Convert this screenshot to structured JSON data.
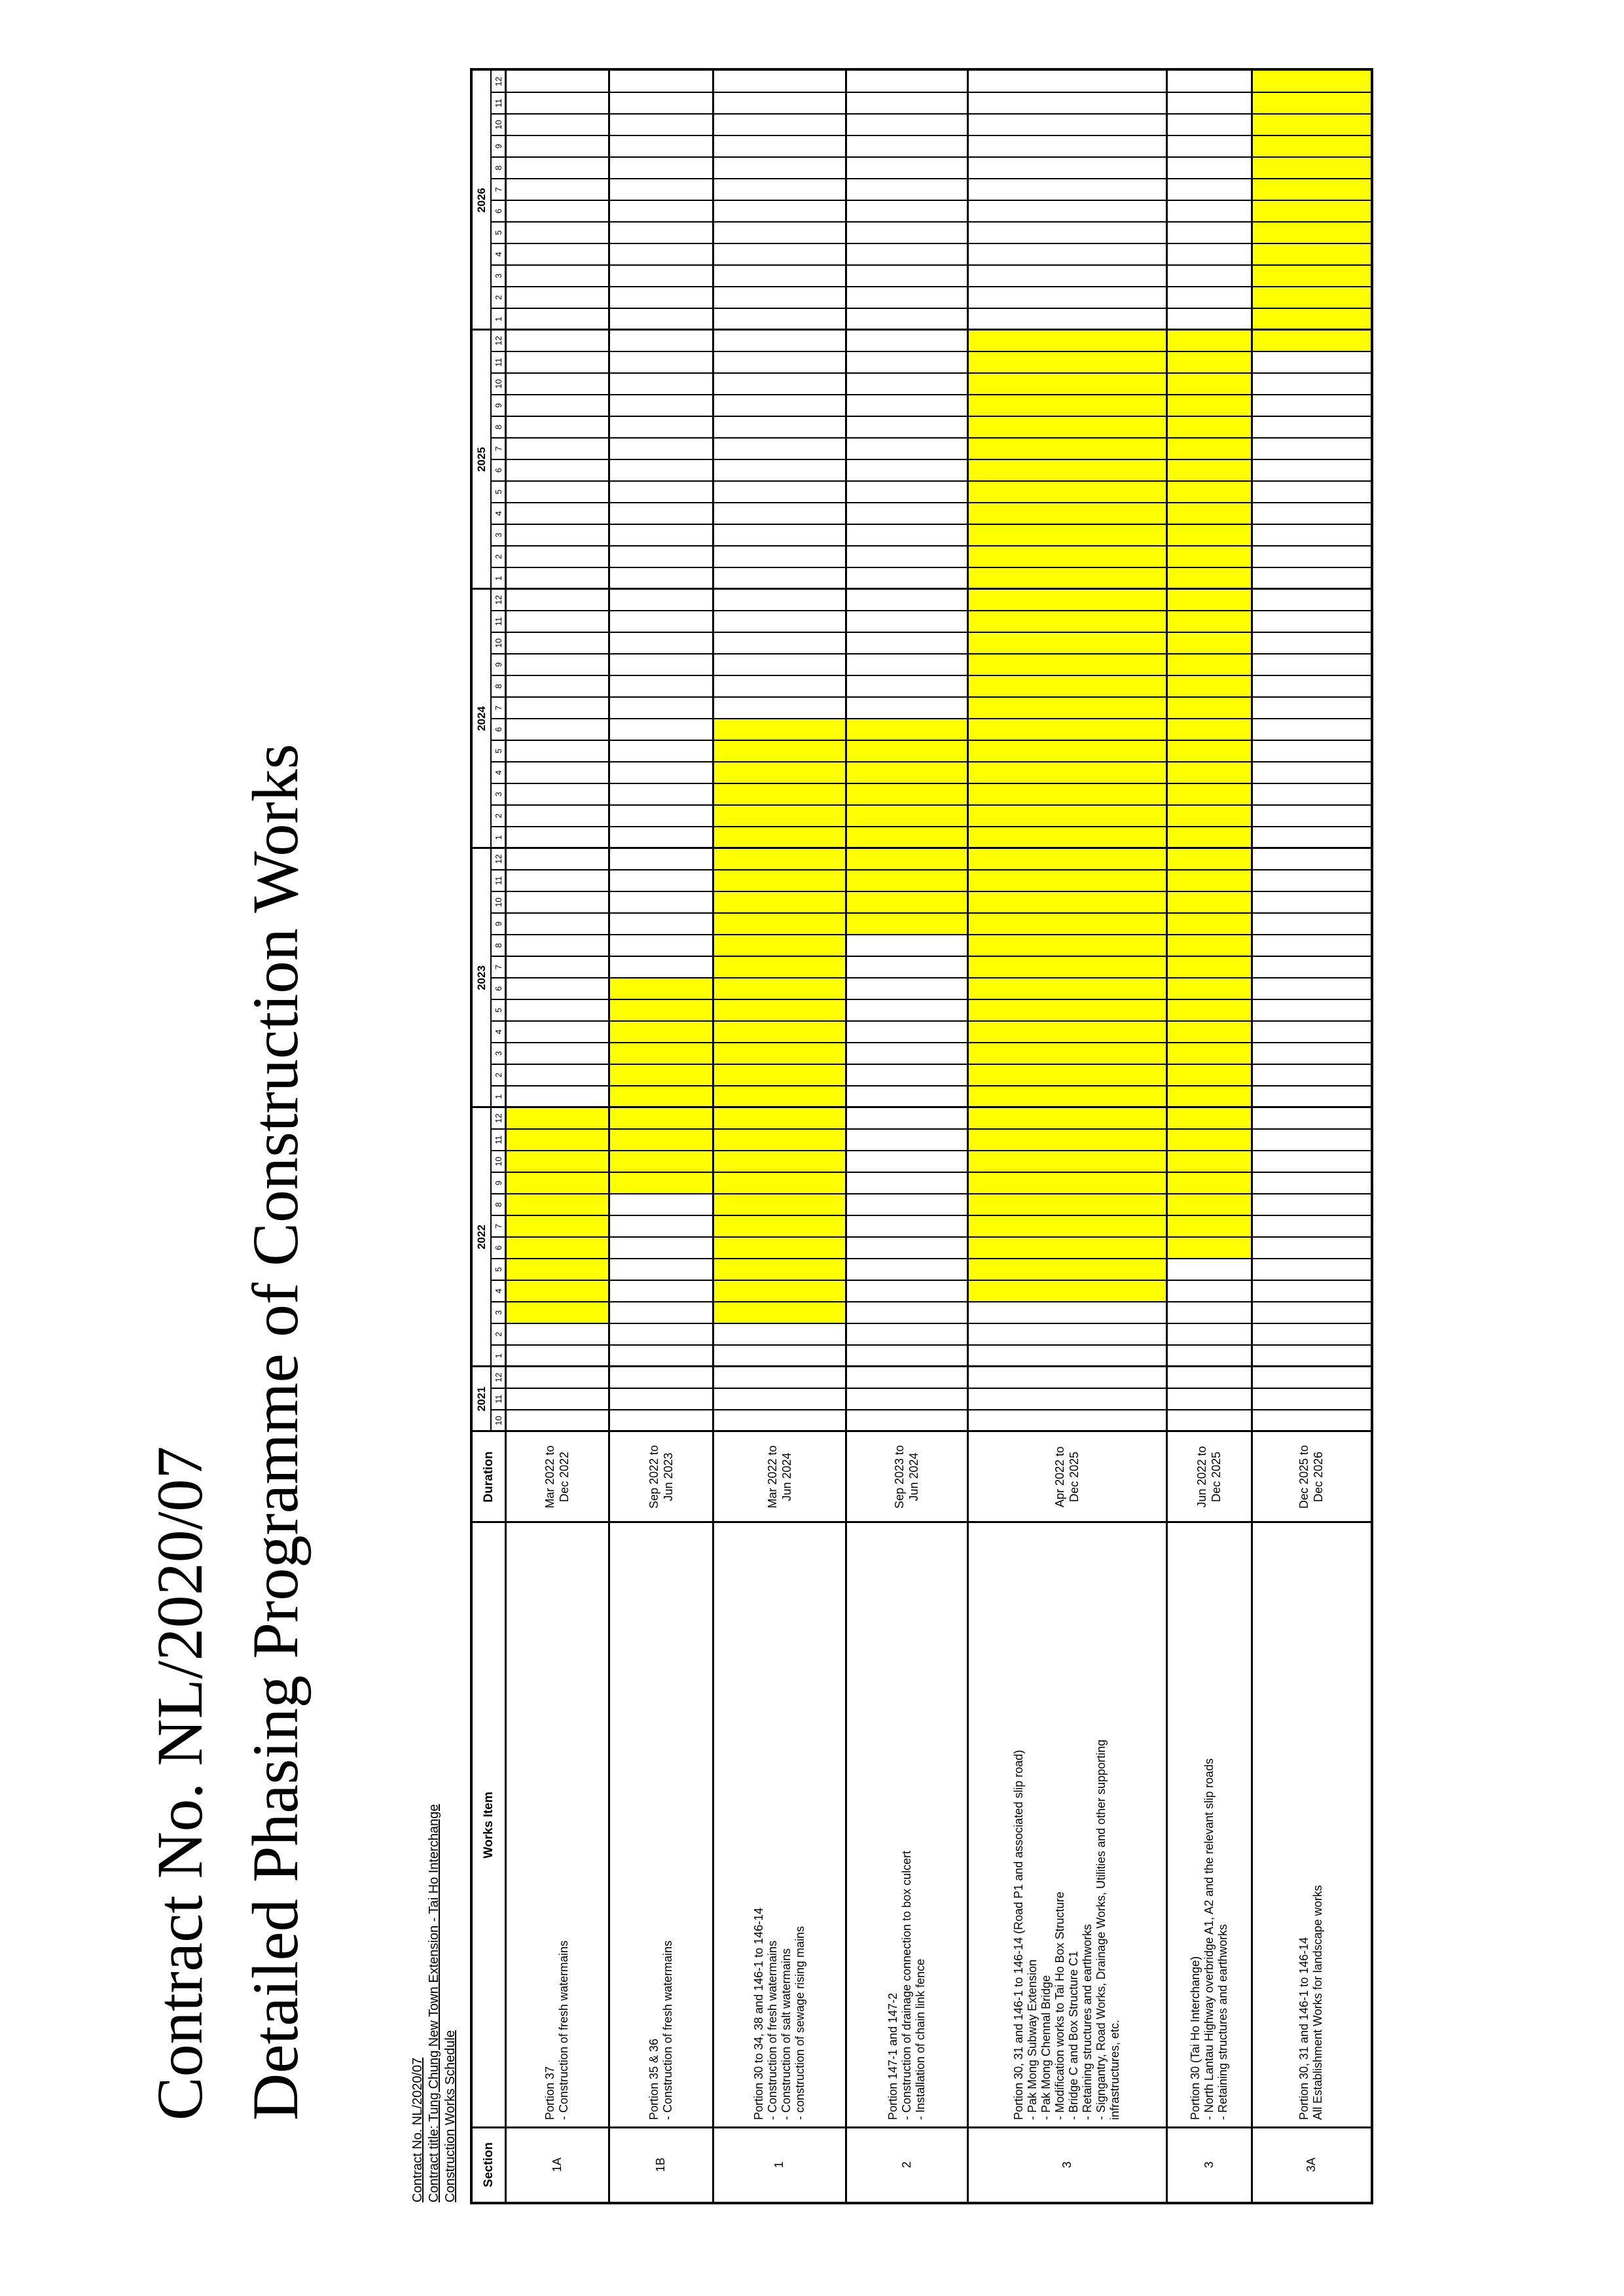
{
  "title": {
    "line1": "Contract No. NL/2020/07",
    "line2": "Detailed Phasing Programme of Construction Works"
  },
  "meta": [
    "Contract No. NL/2020/07",
    "Contract title: Tung Chung New Town Extension - Tai Ho Interchange",
    "Construction Works Schedule"
  ],
  "table": {
    "headers": {
      "section": "Section",
      "works_item": "Works Item",
      "duration": "Duration"
    },
    "timeline": {
      "years": [
        {
          "label": "2021",
          "months": [
            "10",
            "11",
            "12"
          ]
        },
        {
          "label": "2022",
          "months": [
            "1",
            "2",
            "3",
            "4",
            "5",
            "6",
            "7",
            "8",
            "9",
            "10",
            "11",
            "12"
          ]
        },
        {
          "label": "2023",
          "months": [
            "1",
            "2",
            "3",
            "4",
            "5",
            "6",
            "7",
            "8",
            "9",
            "10",
            "11",
            "12"
          ]
        },
        {
          "label": "2024",
          "months": [
            "1",
            "2",
            "3",
            "4",
            "5",
            "6",
            "7",
            "8",
            "9",
            "10",
            "11",
            "12"
          ]
        },
        {
          "label": "2025",
          "months": [
            "1",
            "2",
            "3",
            "4",
            "5",
            "6",
            "7",
            "8",
            "9",
            "10",
            "11",
            "12"
          ]
        },
        {
          "label": "2026",
          "months": [
            "1",
            "2",
            "3",
            "4",
            "5",
            "6",
            "7",
            "8",
            "9",
            "10",
            "11",
            "12"
          ]
        }
      ]
    },
    "rows": [
      {
        "section": "1A",
        "works": [
          "Portion 37",
          "- Construction of fresh watermains"
        ],
        "duration": [
          "Mar 2022 to",
          "Dec 2022"
        ],
        "bar_start_month": 5,
        "bar_end_month": 15
      },
      {
        "section": "1B",
        "works": [
          "Portion 35 & 36",
          "- Construction of fresh watermains"
        ],
        "duration": [
          "Sep 2022 to",
          "Jun 2023"
        ],
        "bar_start_month": 11,
        "bar_end_month": 21
      },
      {
        "section": "1",
        "works": [
          "Portion 30 to 34, 38 and 146-1 to 146-14",
          "- Construction of fresh watermains",
          "- Construction of salt watermains",
          "- construction of sewage rising mains"
        ],
        "duration": [
          "Mar 2022 to",
          "Jun 2024"
        ],
        "bar_start_month": 5,
        "bar_end_month": 33
      },
      {
        "section": "2",
        "works": [
          "Portion 147-1 and 147-2",
          "- Construction of drainage connection to box culcert",
          "- Installation of chain link fence"
        ],
        "duration": [
          "Sep 2023 to",
          "Jun 2024"
        ],
        "bar_start_month": 23,
        "bar_end_month": 33
      },
      {
        "section": "3",
        "works": [
          "Portion 30, 31 and 146-1 to 146-14 (Road P1 and associated slip road)",
          "- Pak Mong Subway Extension",
          "- Pak Mong Chennal Bridge",
          "- Modification works to Tai Ho Box Structure",
          "- Bridge C and Box Structure C1",
          "- Retaining structures and earthworks",
          "- Signgantry, Road Works, Drainage Works, Utilities and other supporting",
          "infrastructures, etc."
        ],
        "duration": [
          "Apr 2022 to",
          "Dec 2025"
        ],
        "bar_start_month": 6,
        "bar_end_month": 51
      },
      {
        "section": "3",
        "works": [
          "Portion 30 (Tai Ho Interchange)",
          "- North Lantau Highway overbridge A1, A2 and the relevant slip roads",
          "- Retaining structures and earthworks"
        ],
        "duration": [
          "Jun 2022 to",
          "Dec 2025"
        ],
        "bar_start_month": 8,
        "bar_end_month": 51
      },
      {
        "section": "3A",
        "works": [
          "Portion 30, 31 and 146-1 to 146-14",
          "All Establishment Works for landscape works"
        ],
        "duration": [
          "Dec 2025 to",
          "Dec 2026"
        ],
        "bar_start_month": 50,
        "bar_end_month": 63
      }
    ],
    "timeline_origin": "Oct 2021"
  },
  "colors": {
    "bar": "#ffff00",
    "grid": "#000000",
    "background": "#ffffff",
    "text": "#000000"
  }
}
